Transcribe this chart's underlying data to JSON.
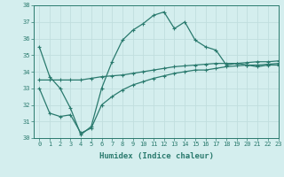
{
  "x": [
    0,
    1,
    2,
    3,
    4,
    5,
    6,
    7,
    8,
    9,
    10,
    11,
    12,
    13,
    14,
    15,
    16,
    17,
    18,
    19,
    20,
    21,
    22,
    23
  ],
  "line1": [
    35.5,
    33.7,
    33.0,
    31.8,
    30.2,
    30.7,
    33.0,
    34.6,
    35.9,
    36.5,
    36.9,
    37.4,
    37.6,
    36.6,
    37.0,
    35.9,
    35.5,
    35.3,
    34.4,
    34.5,
    34.4,
    34.3,
    34.4,
    34.4
  ],
  "line2": [
    33.5,
    33.5,
    33.5,
    33.5,
    33.5,
    33.6,
    33.7,
    33.75,
    33.8,
    33.9,
    34.0,
    34.1,
    34.2,
    34.3,
    34.35,
    34.4,
    34.45,
    34.5,
    34.5,
    34.5,
    34.55,
    34.6,
    34.6,
    34.65
  ],
  "line3": [
    33.0,
    31.5,
    31.3,
    31.4,
    30.3,
    30.6,
    32.0,
    32.5,
    32.9,
    33.2,
    33.4,
    33.6,
    33.75,
    33.9,
    34.0,
    34.1,
    34.1,
    34.2,
    34.3,
    34.35,
    34.4,
    34.4,
    34.45,
    34.5
  ],
  "line_color": "#2a7a6e",
  "marker": "+",
  "marker_size": 3.5,
  "marker_lw": 0.8,
  "linewidth": 0.9,
  "xlabel": "Humidex (Indice chaleur)",
  "ylim": [
    30,
    38
  ],
  "xlim": [
    -0.5,
    23
  ],
  "yticks": [
    30,
    31,
    32,
    33,
    34,
    35,
    36,
    37,
    38
  ],
  "xticks": [
    0,
    1,
    2,
    3,
    4,
    5,
    6,
    7,
    8,
    9,
    10,
    11,
    12,
    13,
    14,
    15,
    16,
    17,
    18,
    19,
    20,
    21,
    22,
    23
  ],
  "xtick_labels": [
    "0",
    "1",
    "2",
    "3",
    "4",
    "5",
    "6",
    "7",
    "8",
    "9",
    "10",
    "11",
    "12",
    "13",
    "14",
    "15",
    "16",
    "17",
    "18",
    "19",
    "20",
    "21",
    "22",
    "23"
  ],
  "bg_color": "#d4eeee",
  "grid_color": "#c0dede",
  "tick_font_size": 5.0,
  "xlabel_font_size": 6.5,
  "label_color": "#2a7a6e"
}
